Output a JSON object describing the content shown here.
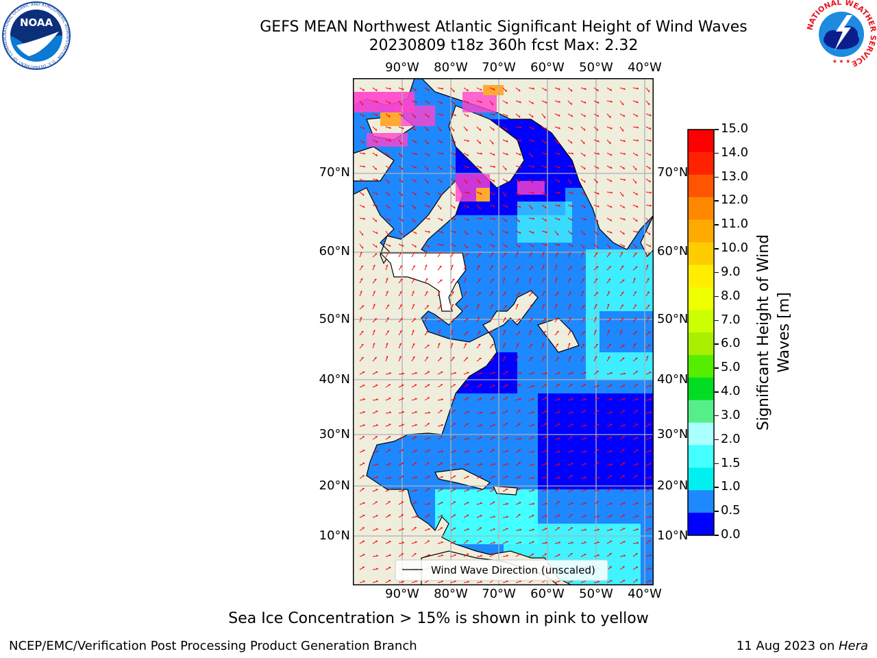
{
  "title": {
    "line1": "GEFS MEAN Northwest Atlantic Significant Height of Wind Waves",
    "line2": "20230809 t18z 360h fcst   Max: 2.32"
  },
  "map": {
    "lon_labels": [
      "90°W",
      "80°W",
      "70°W",
      "60°W",
      "50°W",
      "40°W"
    ],
    "lat_labels": [
      "70°N",
      "60°N",
      "50°N",
      "40°N",
      "30°N",
      "20°N",
      "10°N"
    ],
    "legend_label": "Wind Wave Direction (unscaled)",
    "colors": {
      "land": "#efeddc",
      "ice": "#ff44cc",
      "arrow": "#ff0000",
      "grid": "#b0b0b0"
    }
  },
  "colorbar": {
    "ticks": [
      "15.0",
      "14.0",
      "13.0",
      "12.0",
      "11.0",
      "10.0",
      "9.0",
      "8.0",
      "7.0",
      "6.0",
      "5.0",
      "4.0",
      "3.0",
      "2.0",
      "1.5",
      "1.0",
      "0.5",
      "0.0"
    ],
    "colors_top_down": [
      "#ff0000",
      "#ff2200",
      "#ff5500",
      "#ff8800",
      "#ffaa00",
      "#ffcc00",
      "#ffee00",
      "#eeff00",
      "#ccff00",
      "#aaee00",
      "#55ee00",
      "#00dd22",
      "#55ee88",
      "#aaffff",
      "#44ffff",
      "#00f0f0",
      "#1e88ff",
      "#0000ff"
    ],
    "label_line1": "Significant Height of Wind",
    "label_line2": "Waves [m]"
  },
  "footer": {
    "note": "Sea Ice Concentration > 15% is shown in pink to yellow",
    "credit_left": "NCEP/EMC/Verification Post Processing Product Generation Branch",
    "date": "11 Aug 2023 on ",
    "machine": "Hera"
  },
  "logos": {
    "left": "NOAA",
    "left_ring": "NATIONAL OCEANIC AND ATMOSPHERIC ADMINISTRATION · U.S. DEPARTMENT OF COMMERCE",
    "right_ring": "NATIONAL WEATHER SERVICE"
  }
}
